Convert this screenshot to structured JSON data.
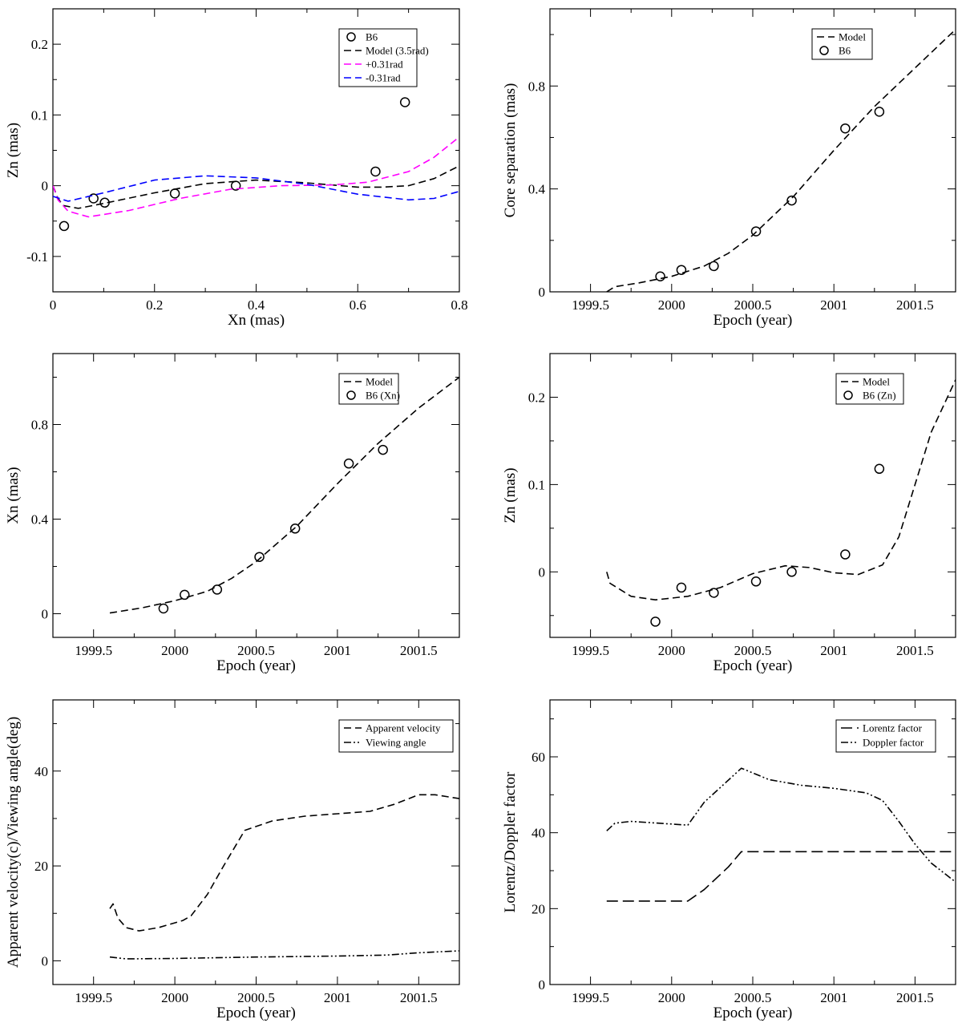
{
  "chart_data": [
    {
      "id": "zn-vs-xn",
      "type": "scatter+line",
      "xlabel": "Xn (mas)",
      "ylabel": "Zn (mas)",
      "xlim": [
        0,
        0.8
      ],
      "ylim": [
        -0.15,
        0.25
      ],
      "xticks": [
        0,
        0.2,
        0.4,
        0.6,
        0.8
      ],
      "xtick_labels": [
        "0",
        "0.2",
        "0.4",
        "0.6",
        "0.8"
      ],
      "xminor": 0.1,
      "yticks": [
        -0.1,
        0,
        0.1,
        0.2
      ],
      "ytick_labels": [
        "-0.1",
        "0",
        "0.1",
        "0.2"
      ],
      "yminor": 0.05,
      "legend_position": "top-right",
      "series": [
        {
          "name": "B6",
          "kind": "points",
          "color": "#000000",
          "x": [
            0.022,
            0.08,
            0.102,
            0.24,
            0.36,
            0.635,
            0.693
          ],
          "y": [
            -0.057,
            -0.018,
            -0.024,
            -0.011,
            0.0,
            0.02,
            0.118
          ]
        },
        {
          "name": "Model (3.5rad)",
          "kind": "dashed",
          "color": "#000000",
          "x": [
            0,
            0.01,
            0.02,
            0.05,
            0.1,
            0.2,
            0.3,
            0.4,
            0.5,
            0.6,
            0.65,
            0.7,
            0.75,
            0.8
          ],
          "y": [
            0,
            -0.018,
            -0.028,
            -0.032,
            -0.025,
            -0.01,
            0.003,
            0.008,
            0.004,
            -0.002,
            -0.002,
            0.0,
            0.01,
            0.028
          ]
        },
        {
          "name": "+0.31rad",
          "kind": "dashed",
          "color": "#ff00ff",
          "x": [
            0,
            0.01,
            0.03,
            0.07,
            0.15,
            0.25,
            0.35,
            0.45,
            0.55,
            0.62,
            0.7,
            0.75,
            0.8
          ],
          "y": [
            0,
            -0.02,
            -0.036,
            -0.044,
            -0.035,
            -0.018,
            -0.005,
            0.0,
            0.001,
            0.005,
            0.02,
            0.04,
            0.069
          ]
        },
        {
          "name": "-0.31rad",
          "kind": "dashed",
          "color": "#0000ff",
          "x": [
            0,
            0.03,
            0.1,
            0.2,
            0.3,
            0.4,
            0.5,
            0.6,
            0.7,
            0.75,
            0.8
          ],
          "y": [
            -0.015,
            -0.022,
            -0.01,
            0.008,
            0.014,
            0.011,
            0.002,
            -0.012,
            -0.02,
            -0.018,
            -0.008
          ]
        }
      ]
    },
    {
      "id": "core-separation",
      "type": "scatter+line",
      "xlabel": "Epoch (year)",
      "ylabel": "Core separation (mas)",
      "xlim": [
        1999.25,
        2001.75
      ],
      "ylim": [
        0,
        1.1
      ],
      "xticks": [
        1999.5,
        2000,
        2000.5,
        2001,
        2001.5
      ],
      "xtick_labels": [
        "1999.5",
        "2000",
        "2000.5",
        "2001",
        "2001.5"
      ],
      "xminor": 0.25,
      "yticks": [
        0,
        0.4,
        0.8
      ],
      "ytick_labels": [
        "0",
        "0.4",
        "0.8"
      ],
      "yminor": 0.2,
      "legend_position": "top-right",
      "series": [
        {
          "name": "Model",
          "kind": "dashed",
          "color": "#000000",
          "x": [
            1999.6,
            1999.65,
            1999.8,
            2000,
            2000.2,
            2000.35,
            2000.5,
            2000.75,
            2001,
            2001.25,
            2001.5,
            2001.75
          ],
          "y": [
            0.0,
            0.02,
            0.035,
            0.06,
            0.1,
            0.15,
            0.22,
            0.37,
            0.55,
            0.72,
            0.87,
            1.02
          ]
        },
        {
          "name": "B6",
          "kind": "points",
          "color": "#000000",
          "x": [
            1999.93,
            2000.06,
            2000.26,
            2000.52,
            2000.74,
            2001.07,
            2001.28
          ],
          "y": [
            0.06,
            0.085,
            0.1,
            0.235,
            0.355,
            0.635,
            0.7
          ]
        }
      ]
    },
    {
      "id": "xn-vs-epoch",
      "type": "scatter+line",
      "xlabel": "Epoch (year)",
      "ylabel": "Xn (mas)",
      "xlim": [
        1999.25,
        2001.75
      ],
      "ylim": [
        -0.1,
        1.1
      ],
      "xticks": [
        1999.5,
        2000,
        2000.5,
        2001,
        2001.5
      ],
      "xtick_labels": [
        "1999.5",
        "2000",
        "2000.5",
        "2001",
        "2001.5"
      ],
      "xminor": 0.25,
      "yticks": [
        0,
        0.4,
        0.8
      ],
      "ytick_labels": [
        "0",
        "0.4",
        "0.8"
      ],
      "yminor": 0.2,
      "legend_position": "top-right",
      "series": [
        {
          "name": "Model",
          "kind": "dashed",
          "color": "#000000",
          "x": [
            1999.6,
            1999.8,
            2000,
            2000.2,
            2000.35,
            2000.5,
            2000.75,
            2001,
            2001.25,
            2001.5,
            2001.75
          ],
          "y": [
            0.003,
            0.025,
            0.055,
            0.095,
            0.15,
            0.22,
            0.37,
            0.55,
            0.72,
            0.87,
            1.0
          ]
        },
        {
          "name": "B6 (Xn)",
          "kind": "points",
          "color": "#000000",
          "x": [
            1999.93,
            2000.06,
            2000.26,
            2000.52,
            2000.74,
            2001.07,
            2001.28
          ],
          "y": [
            0.022,
            0.08,
            0.102,
            0.24,
            0.36,
            0.635,
            0.693
          ]
        }
      ]
    },
    {
      "id": "zn-vs-epoch",
      "type": "scatter+line",
      "xlabel": "Epoch (year)",
      "ylabel": "Zn (mas)",
      "xlim": [
        1999.25,
        2001.75
      ],
      "ylim": [
        -0.075,
        0.25
      ],
      "xticks": [
        1999.5,
        2000,
        2000.5,
        2001,
        2001.5
      ],
      "xtick_labels": [
        "1999.5",
        "2000",
        "2000.5",
        "2001",
        "2001.5"
      ],
      "xminor": 0.25,
      "yticks": [
        0,
        0.1,
        0.2
      ],
      "ytick_labels": [
        "0",
        "0.1",
        "0.2"
      ],
      "yminor": 0.05,
      "legend_position": "top-right",
      "series": [
        {
          "name": "Model",
          "kind": "dashed",
          "color": "#000000",
          "x": [
            1999.6,
            1999.62,
            1999.75,
            1999.9,
            2000.1,
            2000.3,
            2000.5,
            2000.7,
            2000.85,
            2001,
            2001.15,
            2001.3,
            2001.4,
            2001.5,
            2001.6,
            2001.75
          ],
          "y": [
            0,
            -0.013,
            -0.028,
            -0.032,
            -0.028,
            -0.018,
            -0.002,
            0.007,
            0.005,
            -0.001,
            -0.003,
            0.008,
            0.04,
            0.1,
            0.16,
            0.22
          ]
        },
        {
          "name": "B6 (Zn)",
          "kind": "points",
          "color": "#000000",
          "x": [
            1999.9,
            2000.06,
            2000.26,
            2000.52,
            2000.74,
            2001.07,
            2001.28
          ],
          "y": [
            -0.057,
            -0.018,
            -0.024,
            -0.011,
            0.0,
            0.02,
            0.118
          ]
        }
      ]
    },
    {
      "id": "velocity-angle",
      "type": "line",
      "xlabel": "Epoch (year)",
      "ylabel": "Apparent velocity(c)/Viewing angle(deg)",
      "xlim": [
        1999.25,
        2001.75
      ],
      "ylim": [
        -5,
        55
      ],
      "xticks": [
        1999.5,
        2000,
        2000.5,
        2001,
        2001.5
      ],
      "xtick_labels": [
        "1999.5",
        "2000",
        "2000.5",
        "2001",
        "2001.5"
      ],
      "xminor": 0.25,
      "yticks": [
        0,
        20,
        40
      ],
      "ytick_labels": [
        "0",
        "20",
        "40"
      ],
      "yminor": 10,
      "legend_position": "top-right",
      "series": [
        {
          "name": "Apparent velocity",
          "kind": "dashed",
          "color": "#000000",
          "x": [
            1999.6,
            1999.62,
            1999.65,
            1999.7,
            1999.78,
            1999.9,
            2000.05,
            2000.1,
            2000.2,
            2000.3,
            2000.43,
            2000.6,
            2000.8,
            2001,
            2001.2,
            2001.35,
            2001.5,
            2001.6,
            2001.75
          ],
          "y": [
            11,
            12,
            9,
            7,
            6.3,
            7,
            8.5,
            9.5,
            14,
            20,
            27.5,
            29.5,
            30.5,
            31,
            31.5,
            33,
            35,
            35,
            34.2
          ]
        },
        {
          "name": "Viewing angle",
          "kind": "dashdotdot",
          "color": "#000000",
          "x": [
            1999.6,
            1999.7,
            2000,
            2000.5,
            2001,
            2001.3,
            2001.5,
            2001.75
          ],
          "y": [
            0.8,
            0.4,
            0.5,
            0.8,
            1.0,
            1.2,
            1.7,
            2.1
          ]
        }
      ]
    },
    {
      "id": "lorentz-doppler",
      "type": "line",
      "xlabel": "Epoch (year)",
      "ylabel": "Lorentz/Doppler factor",
      "xlim": [
        1999.25,
        2001.75
      ],
      "ylim": [
        0,
        75
      ],
      "xticks": [
        1999.5,
        2000,
        2000.5,
        2001,
        2001.5
      ],
      "xtick_labels": [
        "1999.5",
        "2000",
        "2000.5",
        "2001",
        "2001.5"
      ],
      "xminor": 0.25,
      "yticks": [
        0,
        20,
        40,
        60
      ],
      "ytick_labels": [
        "0",
        "20",
        "40",
        "60"
      ],
      "yminor": 10,
      "legend_position": "top-right",
      "series": [
        {
          "name": "Lorentz factor",
          "kind": "longdash",
          "color": "#000000",
          "x": [
            1999.6,
            2000.1,
            2000.2,
            2000.35,
            2000.43,
            2001.75
          ],
          "y": [
            22,
            22,
            25,
            31,
            35,
            35
          ]
        },
        {
          "name": "Doppler factor",
          "kind": "dashdotdot",
          "color": "#000000",
          "x": [
            1999.6,
            1999.65,
            1999.75,
            2000.1,
            2000.2,
            2000.43,
            2000.6,
            2000.8,
            2001,
            2001.2,
            2001.3,
            2001.4,
            2001.5,
            2001.6,
            2001.75
          ],
          "y": [
            40.5,
            42.5,
            43,
            42,
            48,
            57,
            54,
            52.5,
            51.7,
            50.5,
            48.5,
            43,
            37,
            32,
            27
          ]
        }
      ]
    }
  ]
}
